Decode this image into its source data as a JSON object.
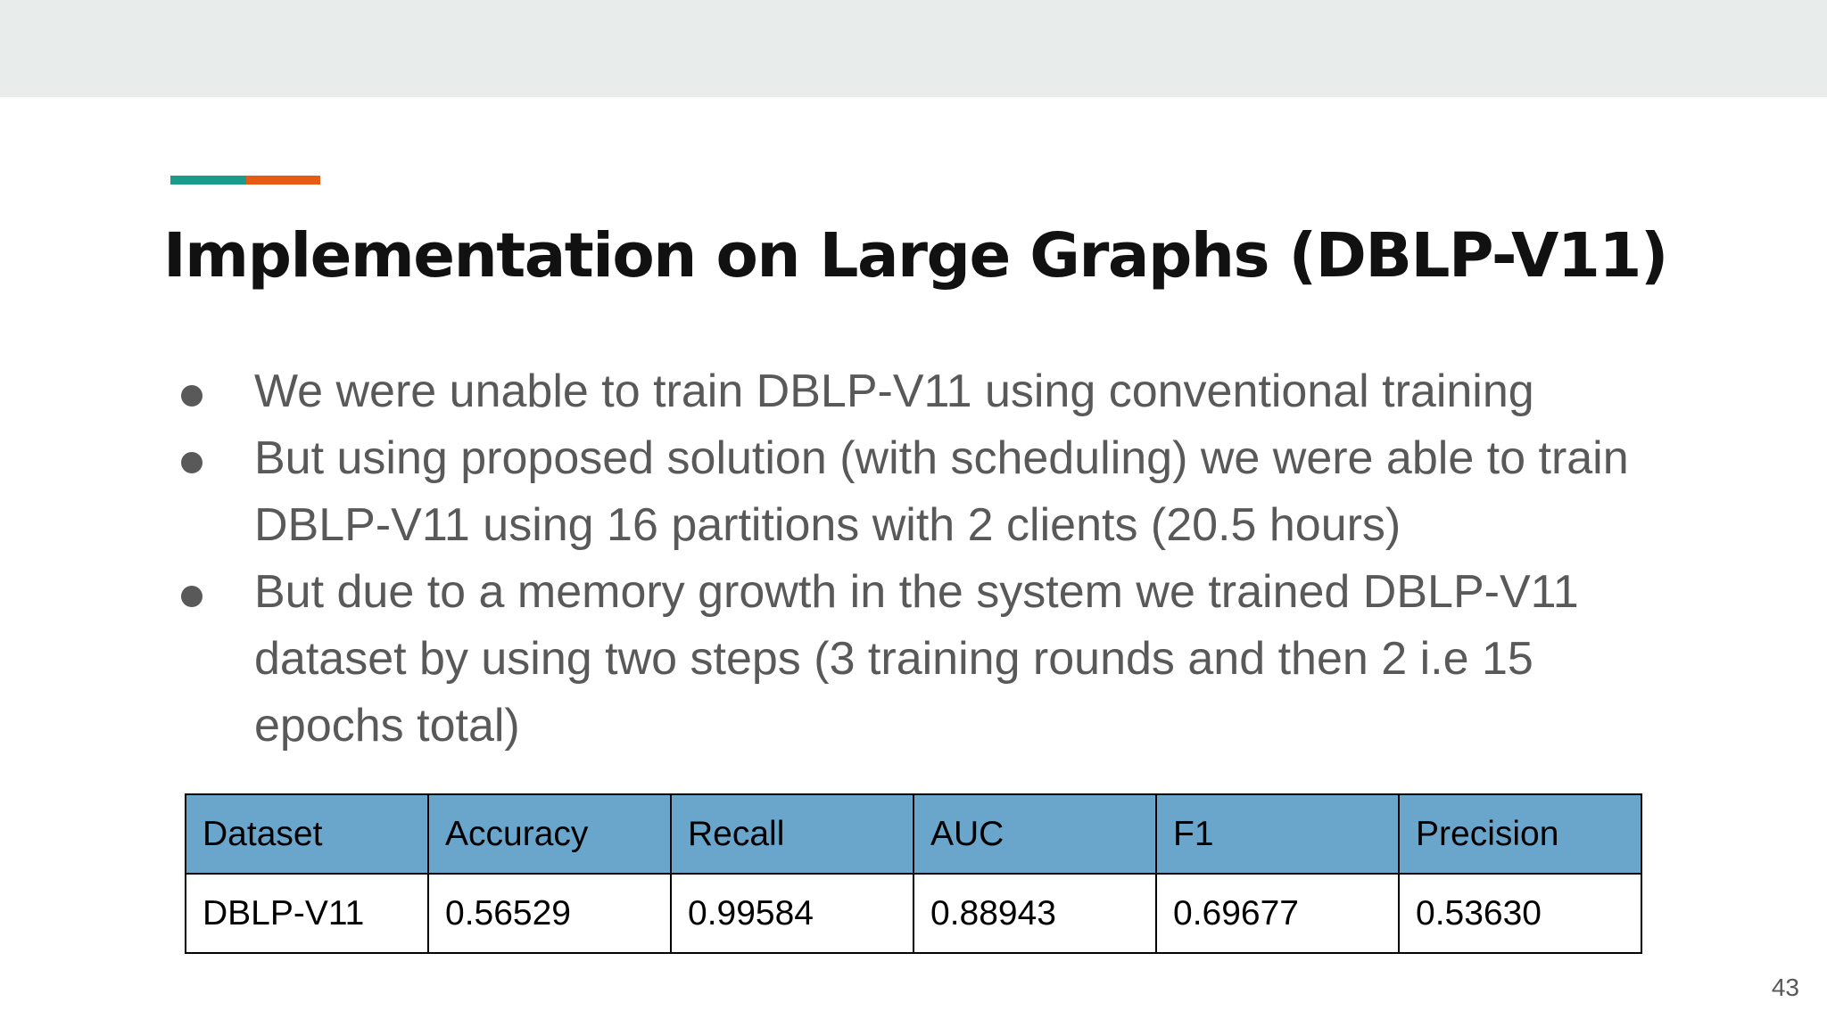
{
  "slide": {
    "title": "Implementation on Large Graphs (DBLP-V11)",
    "bullets": [
      "We were unable to train DBLP-V11 using conventional training",
      "But using proposed solution (with scheduling) we were able to train DBLP-V11 using 16 partitions with 2 clients (20.5 hours)",
      "But due to a memory growth in the system we trained DBLP-V11 dataset by using two steps (3 training rounds and then 2 i.e 15 epochs total)"
    ],
    "table": {
      "headers": [
        "Dataset",
        "Accuracy",
        "Recall",
        "AUC",
        "F1",
        "Precision"
      ],
      "rows": [
        [
          "DBLP-V11",
          "0.56529",
          "0.99584",
          "0.88943",
          "0.69677",
          "0.53630"
        ]
      ]
    },
    "page_number": "43"
  },
  "colors": {
    "top_band": "#e8ecea",
    "accent_teal": "#1a9b8c",
    "accent_orange": "#e65c14",
    "table_header": "#6aa6cc",
    "title_text": "#111111",
    "body_text": "#595959"
  }
}
